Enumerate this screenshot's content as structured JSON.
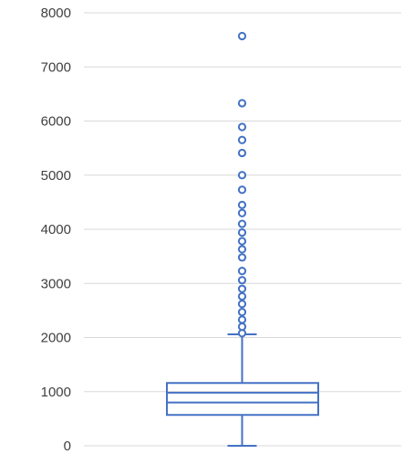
{
  "chart_data": {
    "type": "box",
    "y_ticks": [
      "0",
      "1000",
      "2000",
      "3000",
      "4000",
      "5000",
      "6000",
      "7000",
      "8000"
    ],
    "ylim": [
      0,
      8000
    ],
    "grid": true,
    "legend": "none",
    "series_color": "#4472c4",
    "box": {
      "min": 0,
      "q1": 570,
      "median": 800,
      "mean": 980,
      "q3": 1160,
      "whisker_high": 2060
    },
    "outliers": [
      2080,
      2200,
      2330,
      2470,
      2620,
      2760,
      2900,
      3060,
      3230,
      3480,
      3630,
      3780,
      3940,
      4100,
      4300,
      4450,
      4730,
      5000,
      5410,
      5650,
      5890,
      6330,
      7570
    ]
  }
}
